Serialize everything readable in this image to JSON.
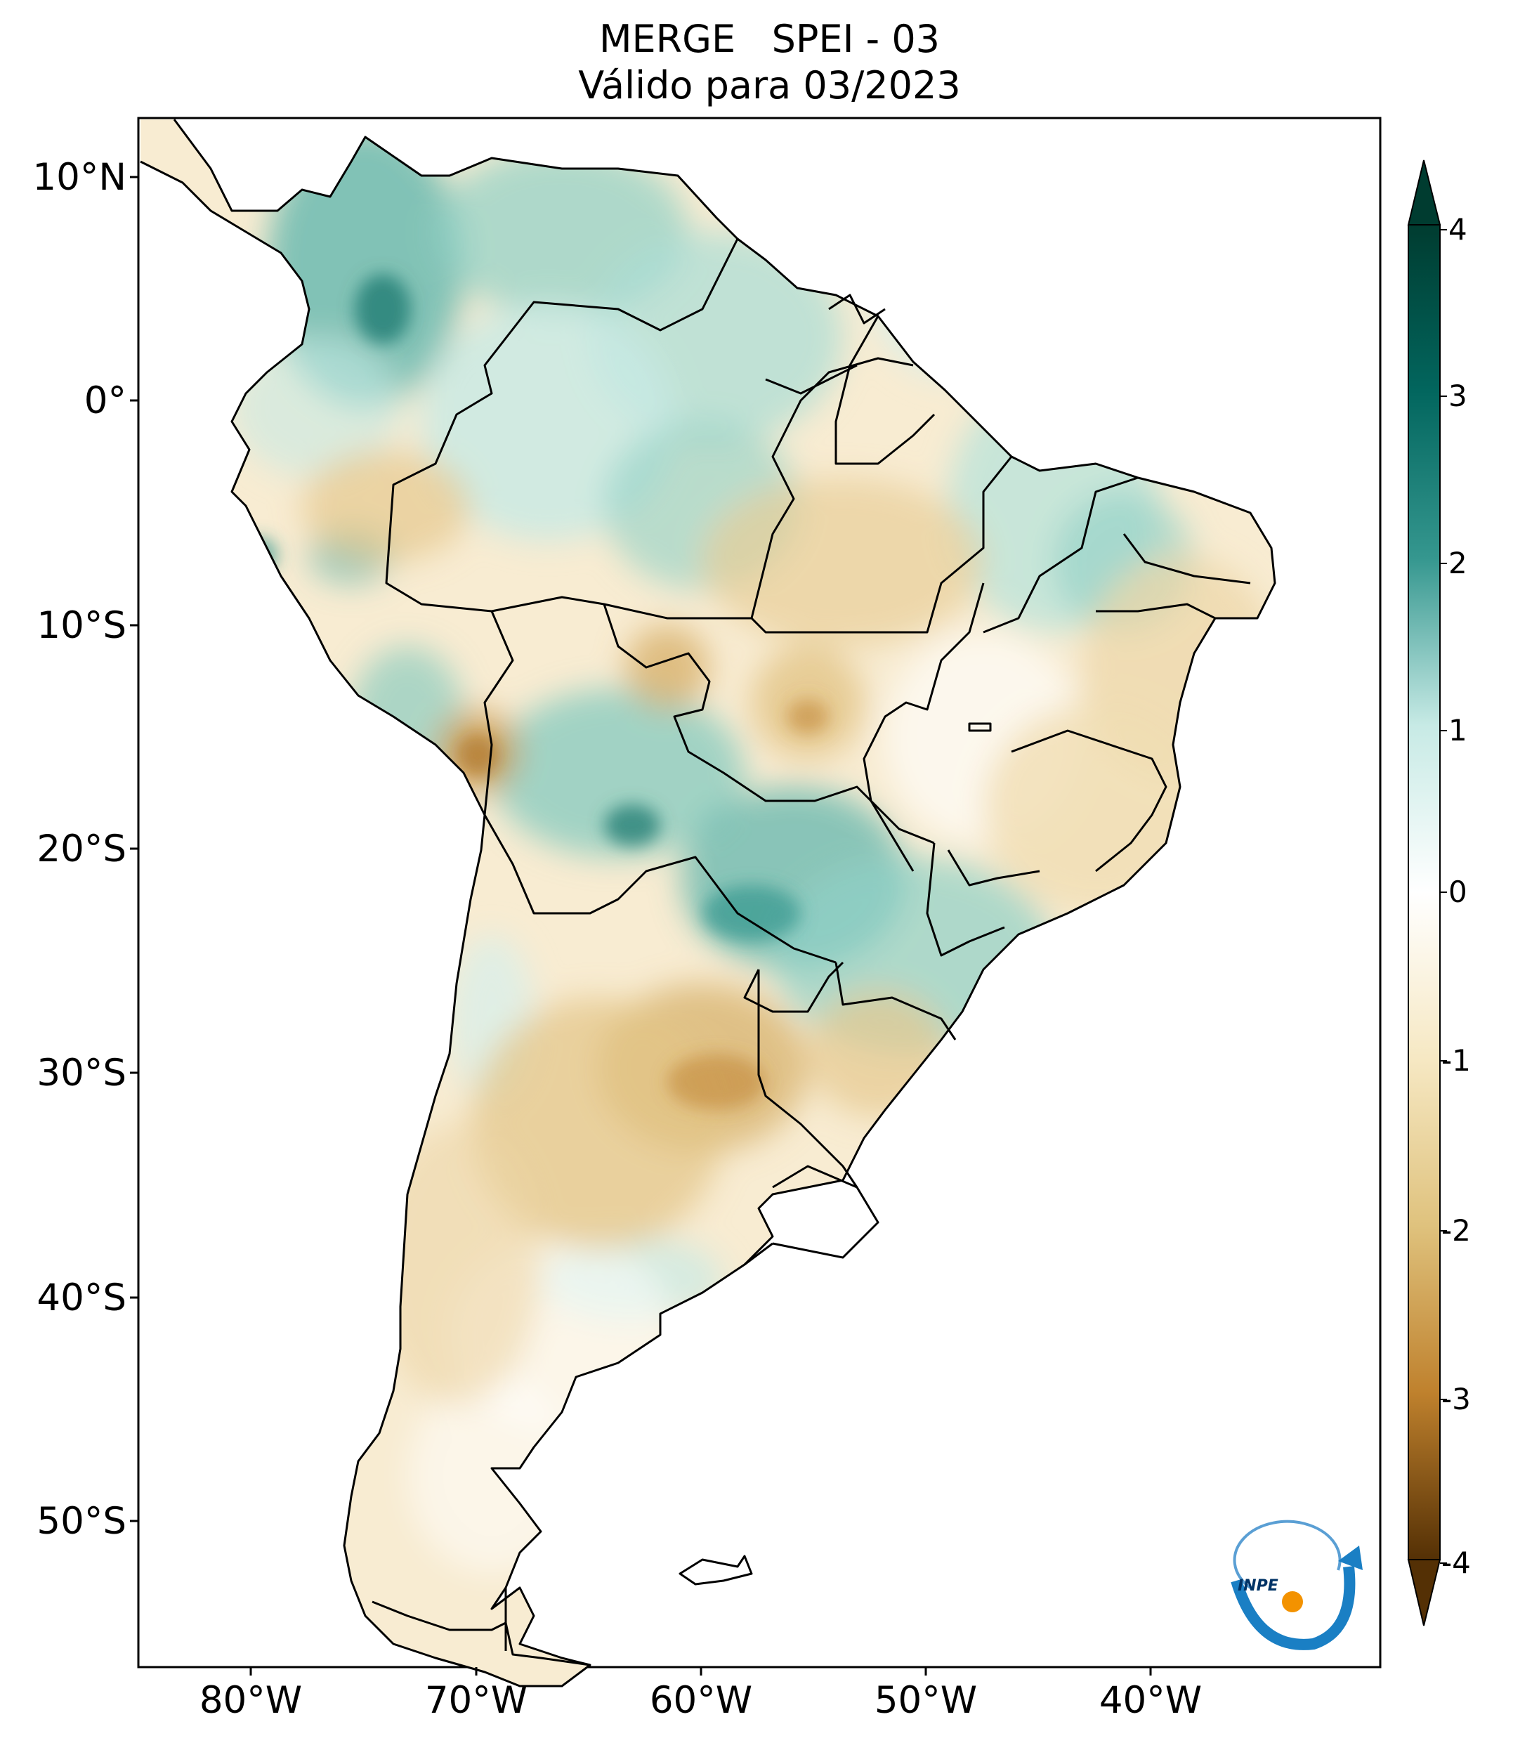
{
  "title": {
    "line1": "MERGE   SPEI - 03",
    "line2": "Válido para 03/2023"
  },
  "map": {
    "product": "MERGE",
    "index": "SPEI - 03",
    "valid_period": "03/2023",
    "lon_range": [
      -85,
      -30
    ],
    "lat_range": [
      -56,
      12.5
    ],
    "latitude_ticks": [
      "10°N",
      "0°",
      "10°S",
      "20°S",
      "30°S",
      "40°S",
      "50°S"
    ],
    "longitude_ticks": [
      "80°W",
      "70°W",
      "60°W",
      "50°W",
      "40°W"
    ]
  },
  "colorbar": {
    "min": -4,
    "max": 4,
    "ticks": [
      "4",
      "3",
      "2",
      "1",
      "0",
      "-1",
      "-2",
      "-3",
      "-4"
    ],
    "extend": "both",
    "colors": {
      "4": "#003c30",
      "3": "#02665e",
      "2": "#35978f",
      "1": "#c7eae5",
      "0": "#ffffff",
      "-1": "#f6e8c3",
      "-2": "#dfc27d",
      "-3": "#bf812d",
      "-4": "#543005"
    }
  },
  "colors": {
    "wet": "#5ab4ac",
    "dry": "#d8b365",
    "neutral": "#ffffff",
    "border": "#000000"
  },
  "logo": {
    "text": "INPE",
    "icon": "inpe-logo-icon"
  }
}
